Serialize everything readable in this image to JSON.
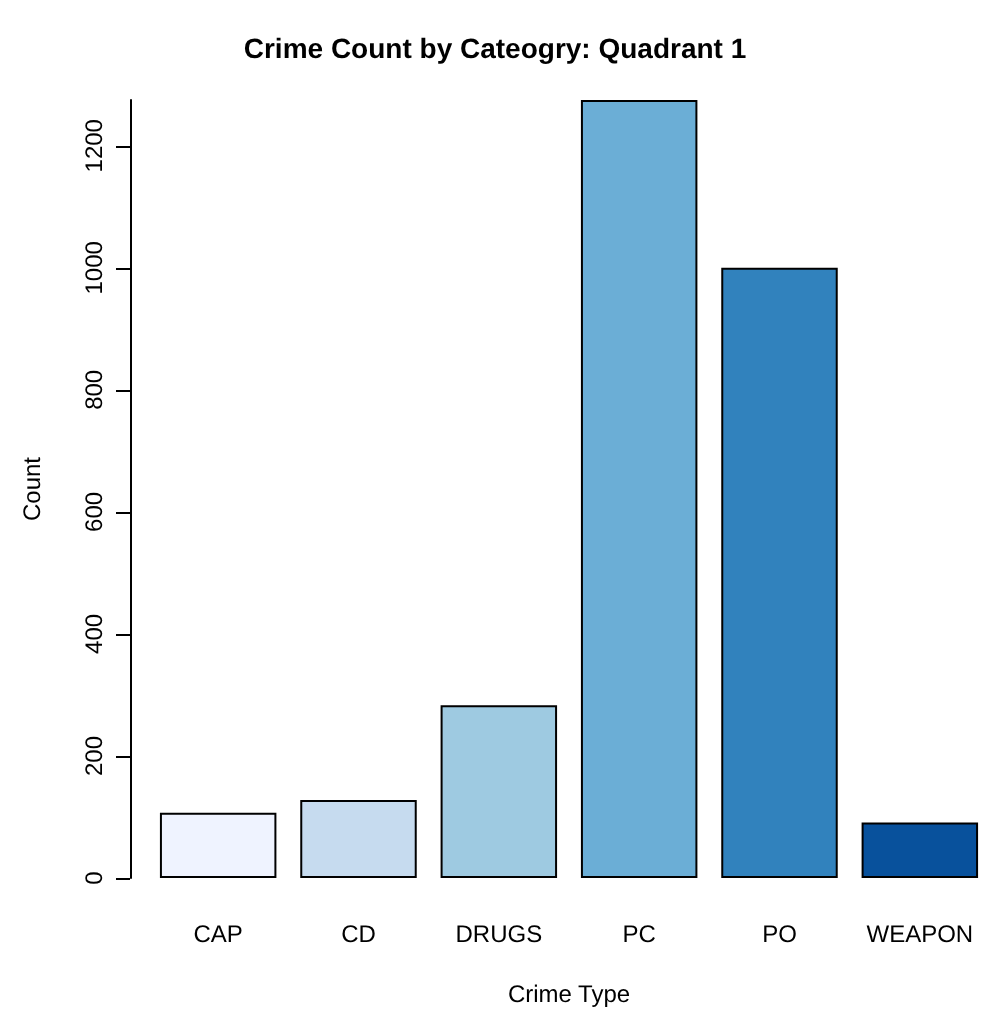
{
  "chart_data": {
    "type": "bar",
    "title": "Crime Count by Cateogry: Quadrant 1",
    "xlabel": "Crime Type",
    "ylabel": "Count",
    "categories": [
      "CAP",
      "CD",
      "DRUGS",
      "PC",
      "PO",
      "WEAPON"
    ],
    "values": [
      107,
      128,
      283,
      1275,
      1000,
      91
    ],
    "colors": [
      "#eff3ff",
      "#c6dbef",
      "#9ecae1",
      "#6baed6",
      "#3182bd",
      "#08519c"
    ],
    "ylim": [
      0,
      1275
    ],
    "yticks": [
      0,
      200,
      400,
      600,
      800,
      1000,
      1200
    ],
    "grid": false
  }
}
